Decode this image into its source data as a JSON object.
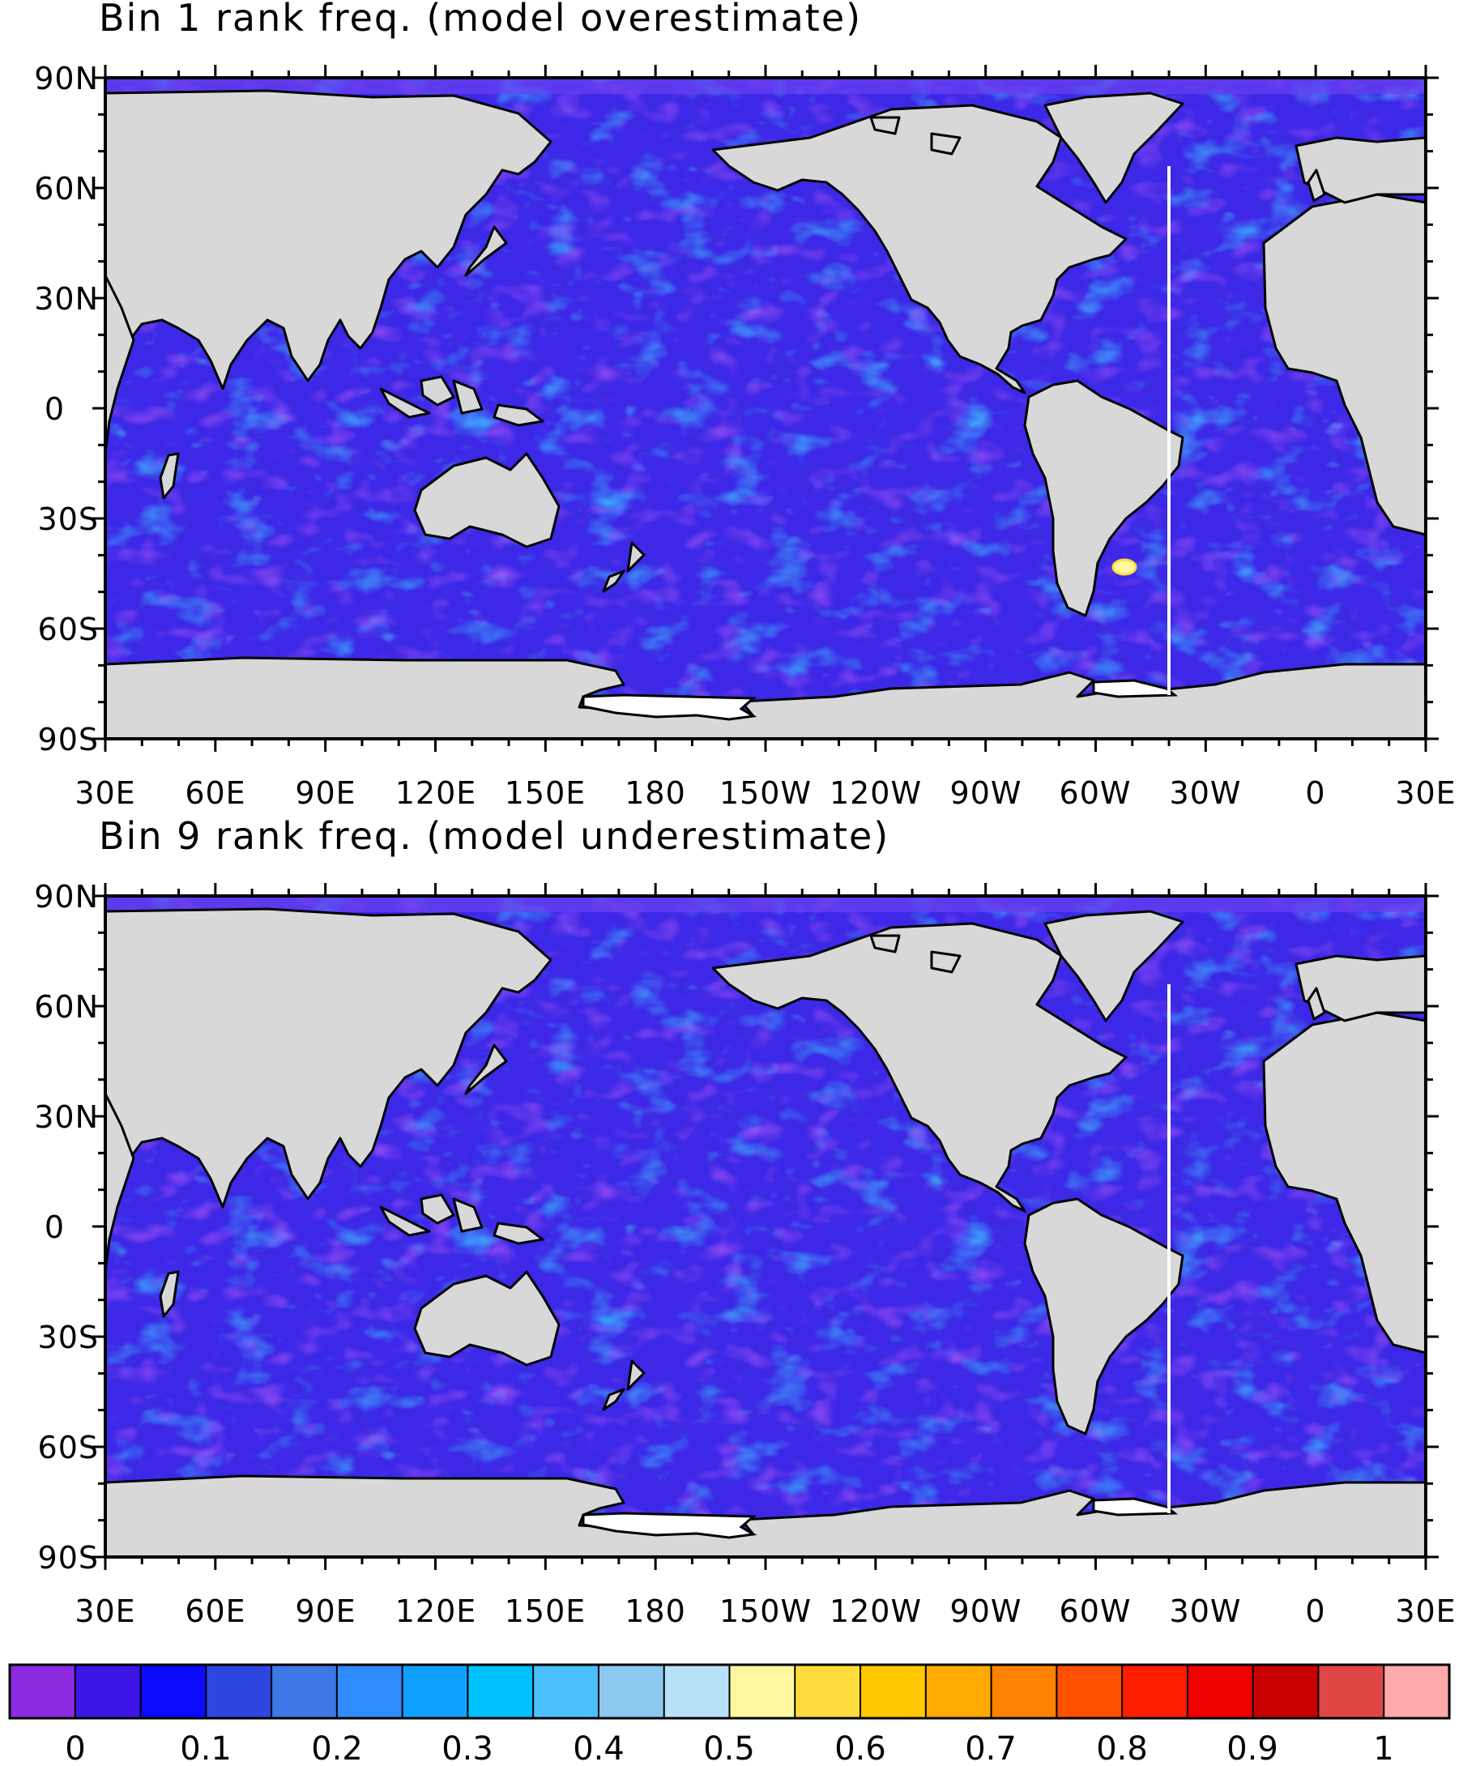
{
  "figure": {
    "panels": [
      {
        "id": "bin1",
        "title": "Bin 1 rank freq. (model overestimate)",
        "hotspot": true
      },
      {
        "id": "bin9",
        "title": "Bin 9 rank freq. (model underestimate)",
        "hotspot": false
      }
    ],
    "lat_labels": [
      "90N",
      "60N",
      "30N",
      "0",
      "30S",
      "60S",
      "90S"
    ],
    "lon_labels": [
      "30E",
      "60E",
      "90E",
      "120E",
      "150E",
      "180",
      "150W",
      "120W",
      "90W",
      "60W",
      "30W",
      "0",
      "30E"
    ],
    "lon_range": [
      30,
      390
    ],
    "lat_range": [
      -90,
      90
    ],
    "colorbar": {
      "labels": [
        "0",
        "0.1",
        "0.2",
        "0.3",
        "0.4",
        "0.5",
        "0.6",
        "0.7",
        "0.8",
        "0.9",
        "1"
      ],
      "colors": [
        "#8a2be2",
        "#3c14e6",
        "#0a0aff",
        "#2e46e0",
        "#3c78e6",
        "#2e8cff",
        "#10a0ff",
        "#00c0ff",
        "#4cc0ff",
        "#8cc8f0",
        "#b8e0f8",
        "#fff8a0",
        "#ffdc3c",
        "#ffc800",
        "#ffaa00",
        "#ff8200",
        "#ff5000",
        "#ff1e00",
        "#f00000",
        "#c80000",
        "#e04646",
        "#ffaaaa"
      ]
    },
    "colors": {
      "ocean_base": "#3c28e6",
      "land": "#d8d8d8"
    }
  }
}
